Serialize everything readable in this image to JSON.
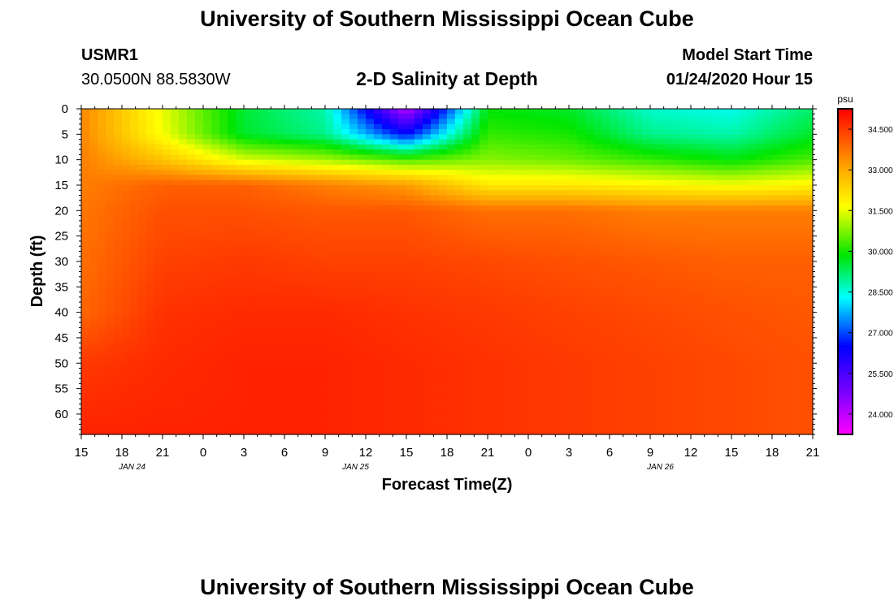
{
  "header": {
    "title": "University of Southern Mississippi Ocean Cube",
    "station": "USMR1",
    "location": "30.0500N 88.5830W",
    "subtitle": "2-D Salinity at Depth",
    "model_label": "Model Start Time",
    "model_time": "01/24/2020 Hour 15"
  },
  "footer": {
    "title": "University of Southern Mississippi Ocean Cube"
  },
  "chart_data": {
    "type": "heatmap",
    "title": "2-D Salinity at Depth",
    "xlabel": "Forecast Time(Z)",
    "ylabel": "Depth (ft)",
    "x_tick_labels": [
      "15",
      "18",
      "21",
      "0",
      "3",
      "6",
      "9",
      "12",
      "15",
      "18",
      "21",
      "0",
      "3",
      "6",
      "9",
      "12",
      "15",
      "18",
      "21"
    ],
    "date_labels": [
      {
        "label": "JAN 24",
        "hour_index": 1.25
      },
      {
        "label": "JAN 25",
        "hour_index": 6.75
      },
      {
        "label": "JAN 26",
        "hour_index": 14.25
      }
    ],
    "x_range_hours": [
      0,
      54
    ],
    "y_tick_labels": [
      "0",
      "5",
      "10",
      "15",
      "20",
      "25",
      "30",
      "35",
      "40",
      "45",
      "50",
      "55",
      "60"
    ],
    "ylim": [
      0,
      64
    ],
    "colorbar": {
      "unit": "psu",
      "range": [
        23.25,
        35.25
      ],
      "tick_labels": [
        "34.500",
        "33.000",
        "31.500",
        "30.000",
        "28.500",
        "27.000",
        "25.500",
        "24.000"
      ],
      "tick_values": [
        34.5,
        33.0,
        31.5,
        30.0,
        28.5,
        27.0,
        25.5,
        24.0
      ]
    },
    "salinity_psu": {
      "hours": [
        0,
        6,
        12,
        18,
        24,
        30,
        36,
        42,
        48,
        54
      ],
      "depths": [
        0,
        5,
        10,
        15,
        20,
        30,
        40,
        50,
        64
      ],
      "values": [
        [
          33.5,
          31.5,
          29.5,
          28.8,
          24.0,
          29.8,
          29.6,
          28.6,
          28.4,
          29.2
        ],
        [
          33.5,
          31.6,
          29.6,
          29.0,
          26.5,
          30.2,
          30.0,
          29.0,
          28.8,
          29.6
        ],
        [
          33.6,
          32.6,
          31.4,
          31.0,
          30.4,
          30.8,
          30.6,
          30.2,
          29.8,
          30.4
        ],
        [
          33.6,
          34.0,
          34.0,
          33.6,
          33.2,
          32.0,
          32.0,
          31.8,
          31.6,
          31.8
        ],
        [
          33.7,
          34.2,
          34.2,
          34.1,
          34.1,
          33.8,
          33.8,
          33.6,
          33.6,
          33.6
        ],
        [
          33.8,
          34.4,
          34.5,
          34.4,
          34.4,
          34.3,
          34.2,
          34.1,
          34.0,
          34.0
        ],
        [
          33.9,
          34.6,
          34.7,
          34.7,
          34.6,
          34.5,
          34.4,
          34.3,
          34.2,
          34.1
        ],
        [
          34.5,
          34.7,
          34.8,
          34.8,
          34.7,
          34.6,
          34.5,
          34.4,
          34.3,
          34.2
        ],
        [
          34.8,
          34.8,
          34.8,
          34.8,
          34.7,
          34.6,
          34.5,
          34.4,
          34.3,
          34.2
        ]
      ]
    },
    "colors": {
      "axis": "#000000",
      "background": "#ffffff"
    }
  }
}
